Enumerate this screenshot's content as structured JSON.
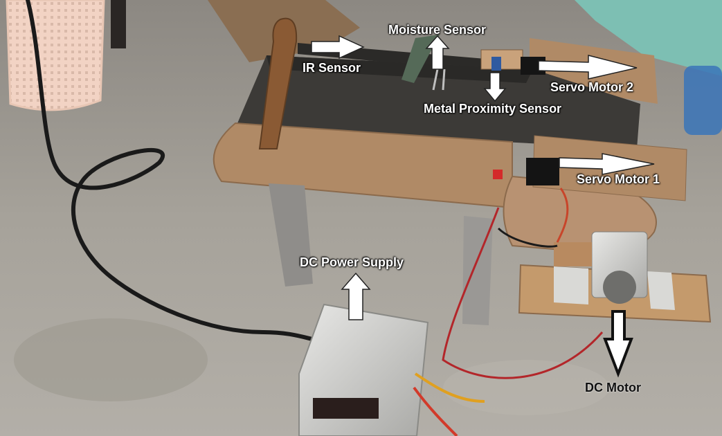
{
  "photo": {
    "labels": {
      "moisture_sensor": "Moisture Sensor",
      "ir_sensor": "IR Sensor",
      "servo_motor_2": "Servo Motor 2",
      "metal_proximity_sensor": "Metal Proximity Sensor",
      "servo_motor_1": "Servo Motor 1",
      "dc_power_supply": "DC Power Supply",
      "dc_motor": "DC Motor"
    },
    "colors": {
      "floor": "#a9a49c",
      "wood": "#b08a66",
      "belt": "#3c3a37",
      "arrow_white": "#ffffff",
      "arrow_black": "#111111",
      "wire_red": "#b3262a"
    }
  }
}
